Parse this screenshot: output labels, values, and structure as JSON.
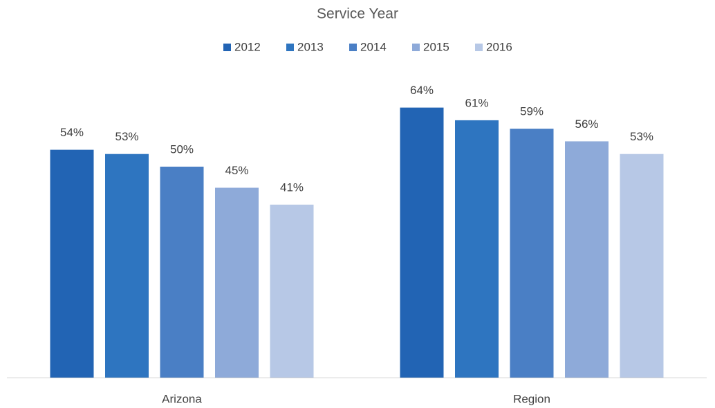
{
  "chart_data": {
    "type": "bar",
    "title": "Service Year",
    "categories": [
      "Arizona",
      "Region"
    ],
    "series": [
      {
        "name": "2012",
        "color": "#2264b4",
        "values": [
          54,
          64
        ],
        "value_labels": [
          "54%",
          "64%"
        ]
      },
      {
        "name": "2013",
        "color": "#2e75c0",
        "values": [
          53,
          61
        ],
        "value_labels": [
          "53%",
          "61%"
        ]
      },
      {
        "name": "2014",
        "color": "#4a7fc5",
        "values": [
          50,
          59
        ],
        "value_labels": [
          "50%",
          "59%"
        ]
      },
      {
        "name": "2015",
        "color": "#8eaad9",
        "values": [
          45,
          56
        ],
        "value_labels": [
          "45%",
          "56%"
        ]
      },
      {
        "name": "2016",
        "color": "#b7c8e6",
        "values": [
          41,
          53
        ],
        "value_labels": [
          "41%",
          "53%"
        ]
      }
    ],
    "ylim": [
      0,
      70
    ],
    "legend": "top"
  }
}
